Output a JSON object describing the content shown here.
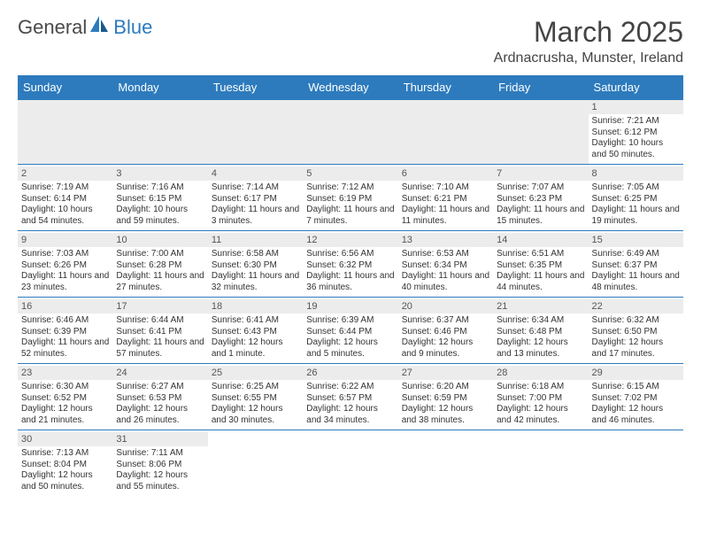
{
  "logo": {
    "text1": "General",
    "text2": "Blue"
  },
  "title": "March 2025",
  "location": "Ardnacrusha, Munster, Ireland",
  "colors": {
    "header_bg": "#2d7bbd",
    "header_text": "#ffffff",
    "daynum_bg": "#ececec",
    "cell_border": "#2d7bbd",
    "body_text": "#333333"
  },
  "day_headers": [
    "Sunday",
    "Monday",
    "Tuesday",
    "Wednesday",
    "Thursday",
    "Friday",
    "Saturday"
  ],
  "weeks": [
    [
      null,
      null,
      null,
      null,
      null,
      null,
      {
        "n": "1",
        "sunrise": "7:21 AM",
        "sunset": "6:12 PM",
        "daylight": "10 hours and 50 minutes."
      }
    ],
    [
      {
        "n": "2",
        "sunrise": "7:19 AM",
        "sunset": "6:14 PM",
        "daylight": "10 hours and 54 minutes."
      },
      {
        "n": "3",
        "sunrise": "7:16 AM",
        "sunset": "6:15 PM",
        "daylight": "10 hours and 59 minutes."
      },
      {
        "n": "4",
        "sunrise": "7:14 AM",
        "sunset": "6:17 PM",
        "daylight": "11 hours and 3 minutes."
      },
      {
        "n": "5",
        "sunrise": "7:12 AM",
        "sunset": "6:19 PM",
        "daylight": "11 hours and 7 minutes."
      },
      {
        "n": "6",
        "sunrise": "7:10 AM",
        "sunset": "6:21 PM",
        "daylight": "11 hours and 11 minutes."
      },
      {
        "n": "7",
        "sunrise": "7:07 AM",
        "sunset": "6:23 PM",
        "daylight": "11 hours and 15 minutes."
      },
      {
        "n": "8",
        "sunrise": "7:05 AM",
        "sunset": "6:25 PM",
        "daylight": "11 hours and 19 minutes."
      }
    ],
    [
      {
        "n": "9",
        "sunrise": "7:03 AM",
        "sunset": "6:26 PM",
        "daylight": "11 hours and 23 minutes."
      },
      {
        "n": "10",
        "sunrise": "7:00 AM",
        "sunset": "6:28 PM",
        "daylight": "11 hours and 27 minutes."
      },
      {
        "n": "11",
        "sunrise": "6:58 AM",
        "sunset": "6:30 PM",
        "daylight": "11 hours and 32 minutes."
      },
      {
        "n": "12",
        "sunrise": "6:56 AM",
        "sunset": "6:32 PM",
        "daylight": "11 hours and 36 minutes."
      },
      {
        "n": "13",
        "sunrise": "6:53 AM",
        "sunset": "6:34 PM",
        "daylight": "11 hours and 40 minutes."
      },
      {
        "n": "14",
        "sunrise": "6:51 AM",
        "sunset": "6:35 PM",
        "daylight": "11 hours and 44 minutes."
      },
      {
        "n": "15",
        "sunrise": "6:49 AM",
        "sunset": "6:37 PM",
        "daylight": "11 hours and 48 minutes."
      }
    ],
    [
      {
        "n": "16",
        "sunrise": "6:46 AM",
        "sunset": "6:39 PM",
        "daylight": "11 hours and 52 minutes."
      },
      {
        "n": "17",
        "sunrise": "6:44 AM",
        "sunset": "6:41 PM",
        "daylight": "11 hours and 57 minutes."
      },
      {
        "n": "18",
        "sunrise": "6:41 AM",
        "sunset": "6:43 PM",
        "daylight": "12 hours and 1 minute."
      },
      {
        "n": "19",
        "sunrise": "6:39 AM",
        "sunset": "6:44 PM",
        "daylight": "12 hours and 5 minutes."
      },
      {
        "n": "20",
        "sunrise": "6:37 AM",
        "sunset": "6:46 PM",
        "daylight": "12 hours and 9 minutes."
      },
      {
        "n": "21",
        "sunrise": "6:34 AM",
        "sunset": "6:48 PM",
        "daylight": "12 hours and 13 minutes."
      },
      {
        "n": "22",
        "sunrise": "6:32 AM",
        "sunset": "6:50 PM",
        "daylight": "12 hours and 17 minutes."
      }
    ],
    [
      {
        "n": "23",
        "sunrise": "6:30 AM",
        "sunset": "6:52 PM",
        "daylight": "12 hours and 21 minutes."
      },
      {
        "n": "24",
        "sunrise": "6:27 AM",
        "sunset": "6:53 PM",
        "daylight": "12 hours and 26 minutes."
      },
      {
        "n": "25",
        "sunrise": "6:25 AM",
        "sunset": "6:55 PM",
        "daylight": "12 hours and 30 minutes."
      },
      {
        "n": "26",
        "sunrise": "6:22 AM",
        "sunset": "6:57 PM",
        "daylight": "12 hours and 34 minutes."
      },
      {
        "n": "27",
        "sunrise": "6:20 AM",
        "sunset": "6:59 PM",
        "daylight": "12 hours and 38 minutes."
      },
      {
        "n": "28",
        "sunrise": "6:18 AM",
        "sunset": "7:00 PM",
        "daylight": "12 hours and 42 minutes."
      },
      {
        "n": "29",
        "sunrise": "6:15 AM",
        "sunset": "7:02 PM",
        "daylight": "12 hours and 46 minutes."
      }
    ],
    [
      {
        "n": "30",
        "sunrise": "7:13 AM",
        "sunset": "8:04 PM",
        "daylight": "12 hours and 50 minutes."
      },
      {
        "n": "31",
        "sunrise": "7:11 AM",
        "sunset": "8:06 PM",
        "daylight": "12 hours and 55 minutes."
      },
      null,
      null,
      null,
      null,
      null
    ]
  ],
  "labels": {
    "sunrise": "Sunrise: ",
    "sunset": "Sunset: ",
    "daylight": "Daylight: "
  }
}
